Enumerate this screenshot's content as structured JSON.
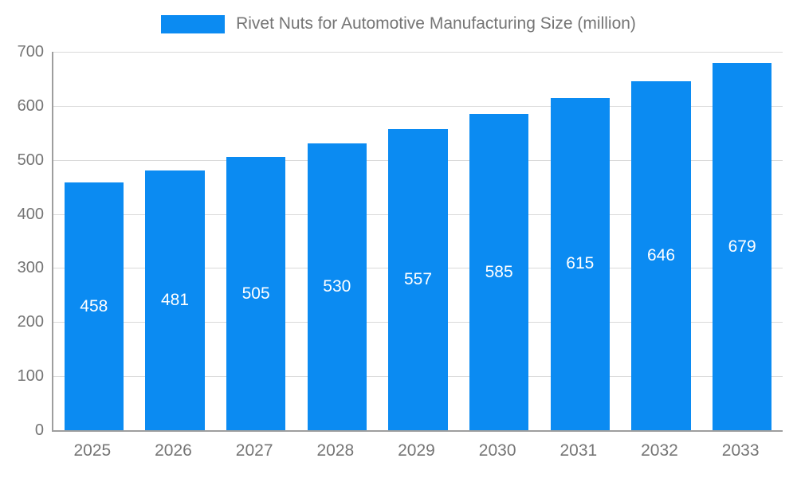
{
  "chart_data": {
    "type": "bar",
    "title": "Rivet Nuts for Automotive Manufacturing Size (million)",
    "categories": [
      "2025",
      "2026",
      "2027",
      "2028",
      "2029",
      "2030",
      "2031",
      "2032",
      "2033"
    ],
    "values": [
      458,
      481,
      505,
      530,
      557,
      585,
      615,
      646,
      679
    ],
    "xlabel": "",
    "ylabel": "",
    "ylim": [
      0,
      700
    ],
    "yticks": [
      0,
      100,
      200,
      300,
      400,
      500,
      600,
      700
    ],
    "grid": true,
    "legend_position": "top",
    "bar_color": "#0b8bf2",
    "value_label_color": "#ffffff",
    "axis_text_color": "#757575"
  }
}
